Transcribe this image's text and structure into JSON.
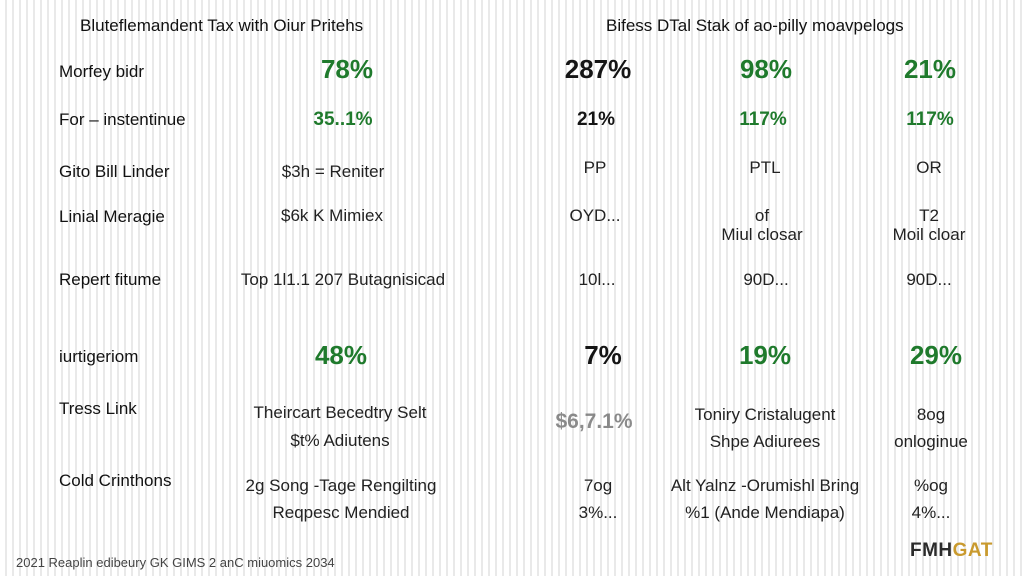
{
  "header": {
    "left_title": "Bluteflemandent Tax with Oiur Pritehs",
    "right_title": "Bifess DTal Stak of ao-pilly moavpelogs"
  },
  "rows": [
    {
      "label": "Morfey bidr",
      "cells": [
        "78%",
        "287%",
        "98%",
        "21%"
      ]
    },
    {
      "label": "For – instentinue",
      "cells": [
        "35..1%",
        "21%",
        "117%",
        "117%"
      ]
    },
    {
      "label": "Gito Bill Linder",
      "cells": [
        "$3h = Reniter",
        "PP",
        "PTL",
        "OR"
      ]
    },
    {
      "label": "Linial Meragie",
      "cells": [
        "$6k K Mimiex",
        "OYD...",
        "of\nMiul closar",
        "T2\nMoil cloar"
      ]
    },
    {
      "label": "Repert fitume",
      "cells": [
        "Top 1l1.1 207 Butagnisicad",
        "10l...",
        "90D...",
        "90D..."
      ]
    },
    {
      "label": "iurtigeriom",
      "cells": [
        "48%",
        "7%",
        "19%",
        "29%"
      ]
    },
    {
      "label": "Tress Link",
      "cells": [
        "Theircart Becedtry Selt\n$t% Adiutens",
        "$6,7.1%",
        "Toniry Cristalugent\nShpe Adiurees",
        "8og\nonloginue"
      ]
    },
    {
      "label": "Cold Crinthons",
      "cells": [
        "2g Song -Tage Rengilting\nReqpesc Mendied",
        "7og\n3%...",
        "Alt Yalnz -Orumishl Bring\n%1 (Ande Mendiapa)",
        "%og\n4%..."
      ]
    }
  ],
  "footer": {
    "text": "2021 Reaplin edibeury GK GIMS 2 anC miuomics 2034"
  },
  "logo": {
    "text_main": "FMH",
    "text_accent": "GAT"
  },
  "colors": {
    "green": "#1f7a2c",
    "dark_text": "#151515",
    "accent": "#c99a2e"
  }
}
